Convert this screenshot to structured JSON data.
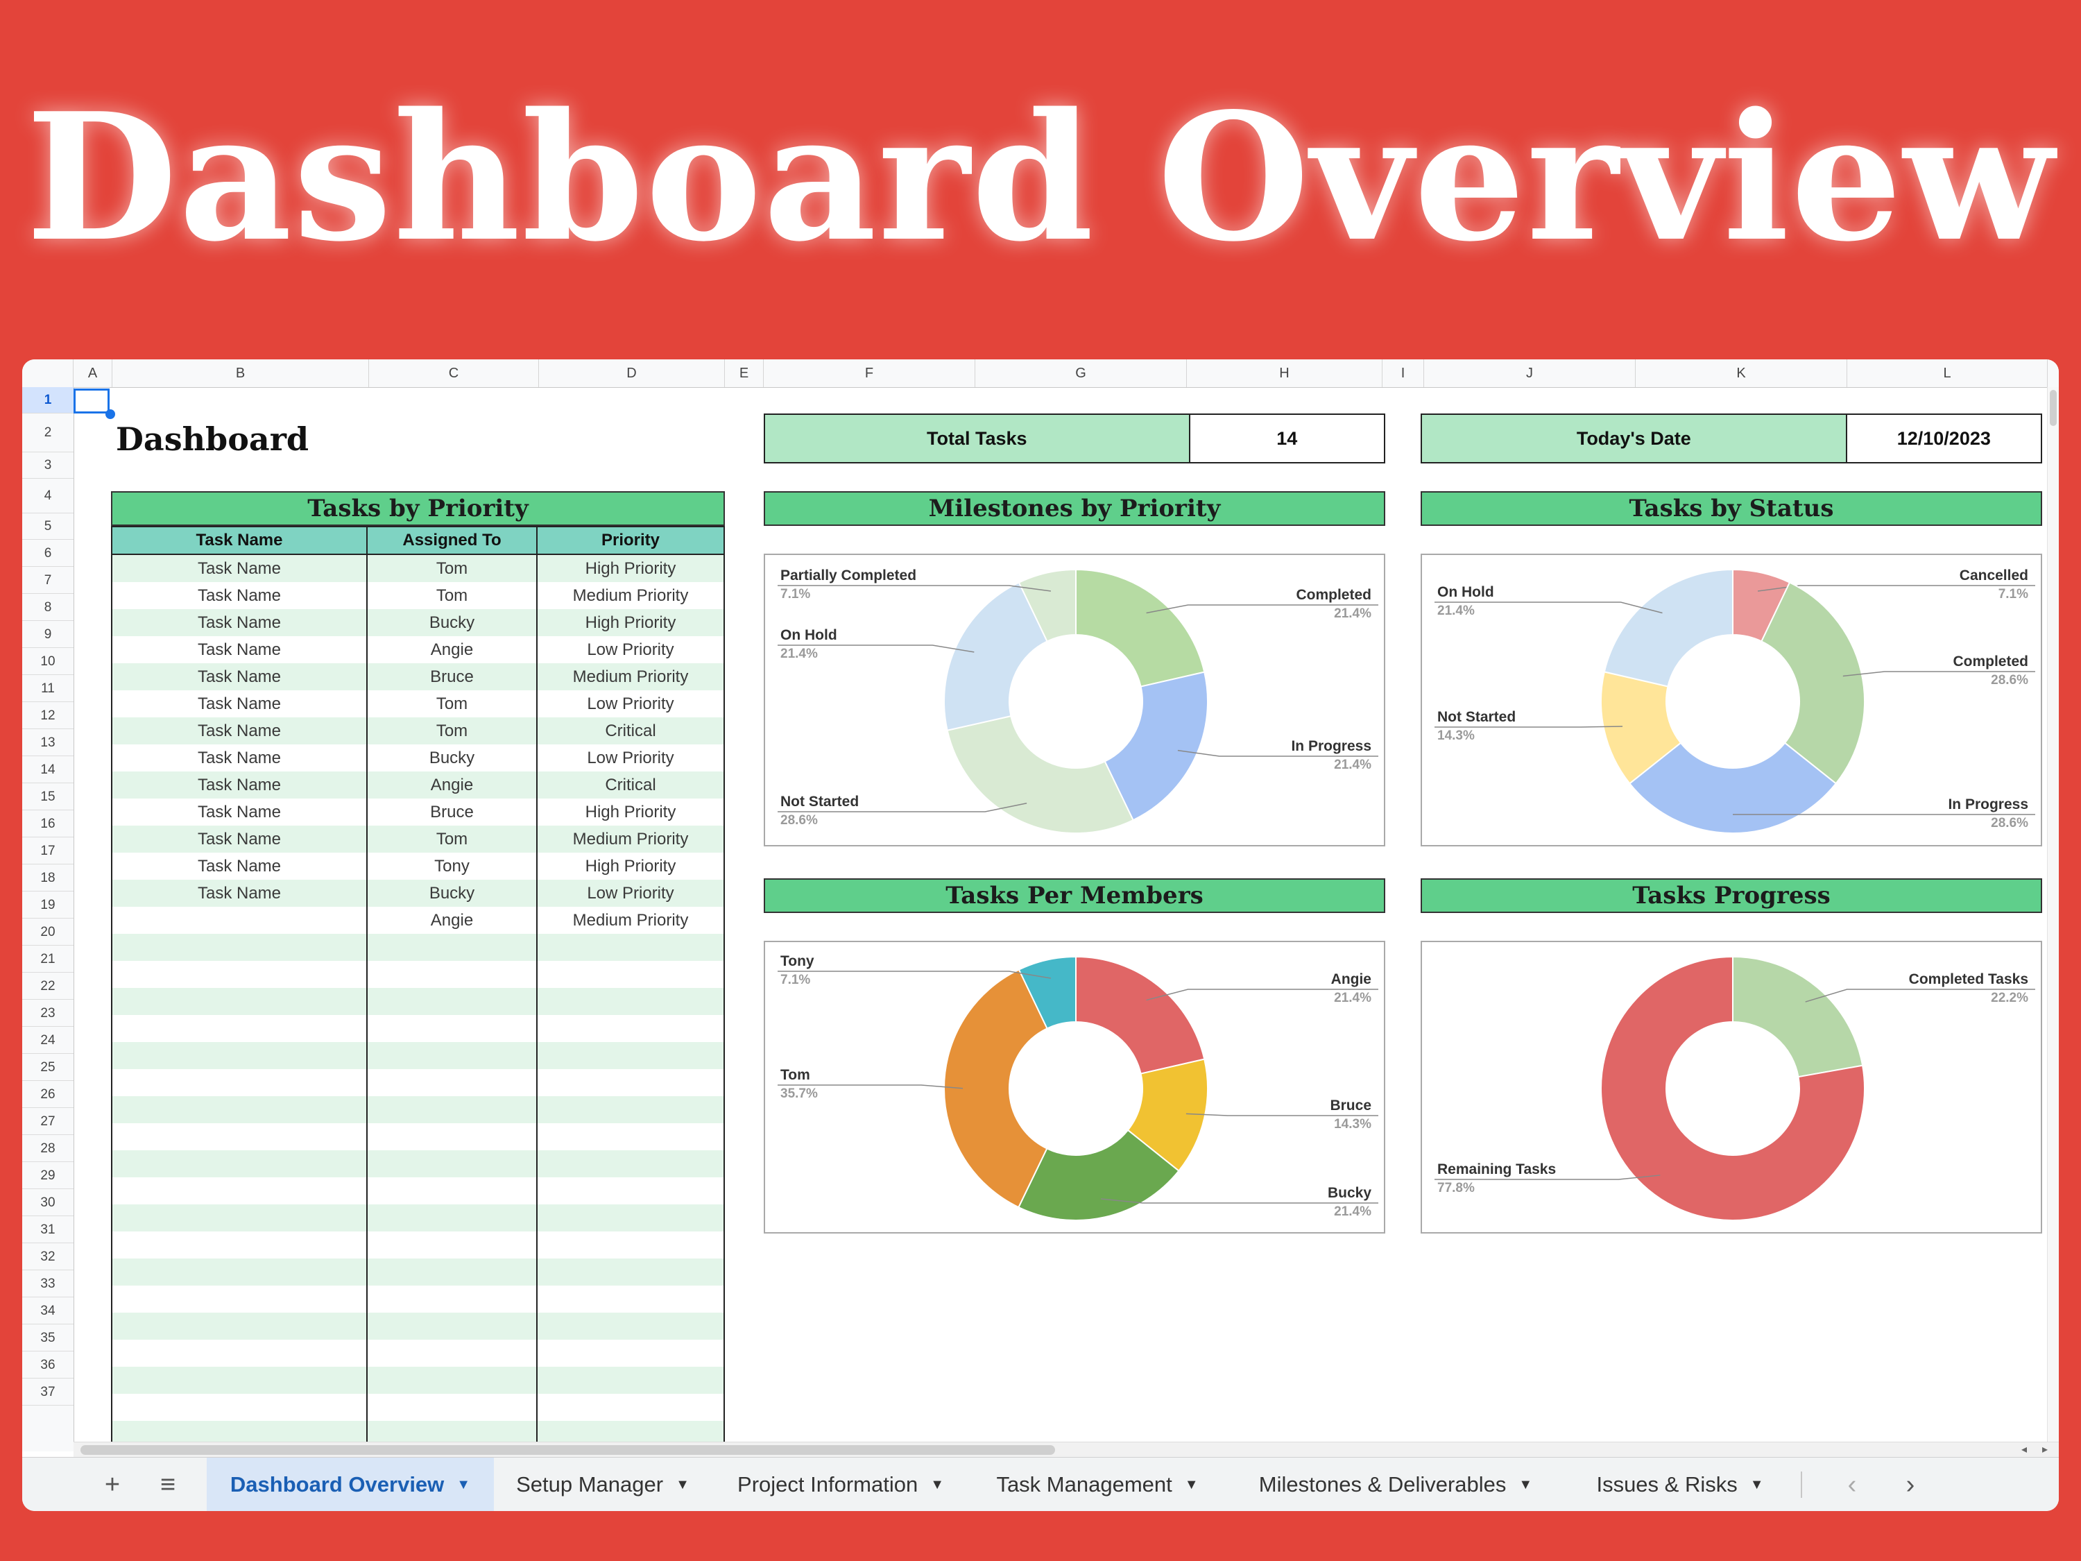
{
  "banner": {
    "title": "Dashboard Overview"
  },
  "sheet": {
    "columns": [
      "A",
      "B",
      "C",
      "D",
      "E",
      "F",
      "G",
      "H",
      "I",
      "J",
      "K",
      "L"
    ],
    "rows": [
      "1",
      "2",
      "3",
      "4",
      "5",
      "6",
      "7",
      "8",
      "9",
      "10",
      "11",
      "12",
      "13",
      "14",
      "15",
      "16",
      "17",
      "18",
      "19",
      "20",
      "21",
      "22",
      "23",
      "24",
      "25",
      "26",
      "27",
      "28",
      "29",
      "30",
      "31",
      "32",
      "33",
      "34",
      "35",
      "36",
      "37"
    ],
    "title": "Dashboard",
    "kpis": [
      {
        "label": "Total Tasks",
        "value": "14"
      },
      {
        "label": "Today's Date",
        "value": "12/10/2023"
      }
    ],
    "table": {
      "title": "Tasks by Priority",
      "headers": [
        "Task Name",
        "Assigned To",
        "Priority"
      ],
      "rows": [
        [
          "Task Name",
          "Tom",
          "High Priority"
        ],
        [
          "Task Name",
          "Tom",
          "Medium Priority"
        ],
        [
          "Task Name",
          "Bucky",
          "High Priority"
        ],
        [
          "Task Name",
          "Angie",
          "Low Priority"
        ],
        [
          "Task Name",
          "Bruce",
          "Medium Priority"
        ],
        [
          "Task Name",
          "Tom",
          "Low Priority"
        ],
        [
          "Task Name",
          "Tom",
          "Critical"
        ],
        [
          "Task Name",
          "Bucky",
          "Low Priority"
        ],
        [
          "Task Name",
          "Angie",
          "Critical"
        ],
        [
          "Task Name",
          "Bruce",
          "High Priority"
        ],
        [
          "Task Name",
          "Tom",
          "Medium Priority"
        ],
        [
          "Task Name",
          "Tony",
          "High Priority"
        ],
        [
          "Task Name",
          "Bucky",
          "Low Priority"
        ],
        [
          "",
          "Angie",
          "Medium Priority"
        ],
        [
          "",
          "",
          ""
        ],
        [
          "",
          "",
          ""
        ],
        [
          "",
          "",
          ""
        ],
        [
          "",
          "",
          ""
        ],
        [
          "",
          "",
          ""
        ],
        [
          "",
          "",
          ""
        ],
        [
          "",
          "",
          ""
        ],
        [
          "",
          "",
          ""
        ],
        [
          "",
          "",
          ""
        ],
        [
          "",
          "",
          ""
        ],
        [
          "",
          "",
          ""
        ],
        [
          "",
          "",
          ""
        ],
        [
          "",
          "",
          ""
        ],
        [
          "",
          "",
          ""
        ],
        [
          "",
          "",
          ""
        ],
        [
          "",
          "",
          ""
        ],
        [
          "",
          "",
          ""
        ],
        [
          "",
          "",
          ""
        ],
        [
          "",
          "",
          ""
        ],
        [
          "",
          "",
          ""
        ],
        [
          "",
          "",
          ""
        ],
        [
          "",
          "",
          ""
        ],
        [
          "",
          "",
          ""
        ],
        [
          "",
          "",
          ""
        ]
      ]
    }
  },
  "chart_data": [
    {
      "type": "pie",
      "title": "Milestones by Priority",
      "labels": [
        "Completed",
        "In Progress",
        "Not Started",
        "On Hold",
        "Partially Completed"
      ],
      "pct_labels": [
        "21.4%",
        "21.4%",
        "28.6%",
        "21.4%",
        "7.1%"
      ],
      "values": [
        21.4,
        21.4,
        28.6,
        21.4,
        7.1
      ],
      "colors": [
        "#b6dba3",
        "#a4c2f4",
        "#d9ead3",
        "#cfe2f3",
        "#d9ead3"
      ]
    },
    {
      "type": "pie",
      "title": "Tasks by Status",
      "labels": [
        "Cancelled",
        "Completed",
        "In Progress",
        "Not Started",
        "On Hold"
      ],
      "pct_labels": [
        "7.1%",
        "28.6%",
        "28.6%",
        "14.3%",
        "21.4%"
      ],
      "values": [
        7.1,
        28.6,
        28.6,
        14.3,
        21.4
      ],
      "colors": [
        "#ea9999",
        "#b6d7a8",
        "#a4c2f4",
        "#ffe599",
        "#cfe2f3"
      ]
    },
    {
      "type": "pie",
      "title": "Tasks Per Members",
      "labels": [
        "Angie",
        "Bruce",
        "Bucky",
        "Tom",
        "Tony"
      ],
      "pct_labels": [
        "21.4%",
        "14.3%",
        "21.4%",
        "35.7%",
        "7.1%"
      ],
      "values": [
        21.4,
        14.3,
        21.4,
        35.7,
        7.1
      ],
      "colors": [
        "#e06666",
        "#f1c232",
        "#6aa84f",
        "#e69138",
        "#45b8c8"
      ]
    },
    {
      "type": "pie",
      "title": "Tasks Progress",
      "labels": [
        "Completed Tasks",
        "Remaining Tasks"
      ],
      "pct_labels": [
        "22.2%",
        "77.8%"
      ],
      "values": [
        22.2,
        77.8
      ],
      "colors": [
        "#b6d7a8",
        "#e06666"
      ]
    }
  ],
  "tabs": {
    "add_icon": "+",
    "menu_icon": "≡",
    "items": [
      {
        "label": "Dashboard Overview"
      },
      {
        "label": "Setup Manager"
      },
      {
        "label": "Project Information"
      },
      {
        "label": "Task Management"
      },
      {
        "label": "Milestones & Deliverables"
      },
      {
        "label": "Issues & Risks"
      }
    ],
    "prev_icon": "‹",
    "next_icon": "›"
  }
}
